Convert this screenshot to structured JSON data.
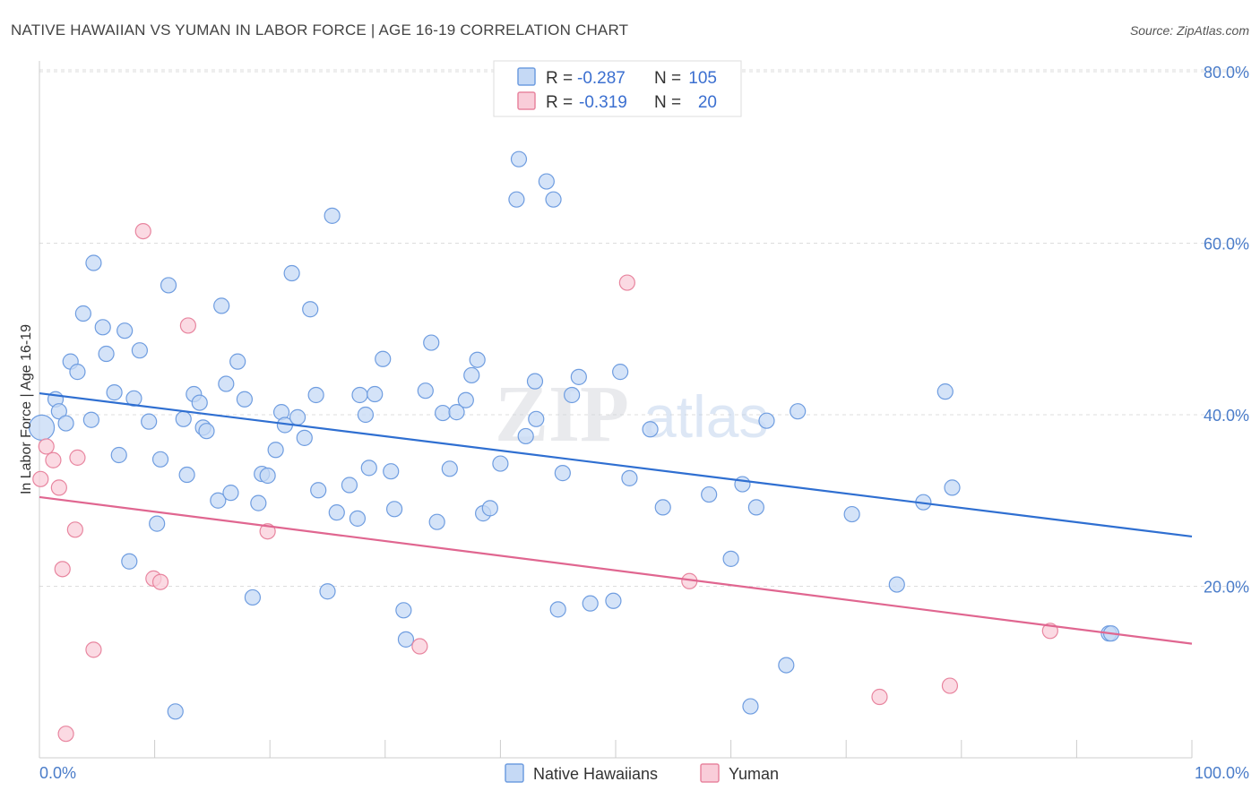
{
  "chart_data": {
    "type": "scatter",
    "title": "NATIVE HAWAIIAN VS YUMAN IN LABOR FORCE | AGE 16-19 CORRELATION CHART",
    "source": "Source: ZipAtlas.com",
    "xlabel": "",
    "ylabel": "In Labor Force | Age 16-19",
    "xlim": [
      0,
      100
    ],
    "ylim": [
      0,
      80
    ],
    "x_tick_labels": [
      "0.0%",
      "100.0%"
    ],
    "y_ticks": [
      20,
      40,
      60,
      80
    ],
    "y_tick_labels": [
      "20.0%",
      "40.0%",
      "60.0%",
      "80.0%"
    ],
    "grid": true,
    "watermark": {
      "zip": "ZIP",
      "atlas": "atlas"
    },
    "stats_legend": [
      {
        "r_label": "R =",
        "r_value": "-0.287",
        "n_label": "N =",
        "n_value": "105"
      },
      {
        "r_label": "R =",
        "r_value": "-0.319",
        "n_label": "N =",
        "n_value": "20"
      }
    ],
    "series": [
      {
        "name": "Native Hawaiians",
        "color": "#6f9de0",
        "fill": "#c5d9f5",
        "trend": {
          "x": [
            0,
            100
          ],
          "y": [
            42.5,
            25.8
          ]
        },
        "points": [
          [
            0.2,
            38.5
          ],
          [
            1.4,
            41.8
          ],
          [
            1.7,
            40.4
          ],
          [
            2.3,
            39.0
          ],
          [
            2.7,
            46.2
          ],
          [
            3.3,
            45.0
          ],
          [
            3.8,
            51.8
          ],
          [
            4.5,
            39.4
          ],
          [
            4.7,
            57.7
          ],
          [
            5.5,
            50.2
          ],
          [
            5.8,
            47.1
          ],
          [
            6.5,
            42.6
          ],
          [
            6.9,
            35.3
          ],
          [
            7.4,
            49.8
          ],
          [
            7.8,
            22.9
          ],
          [
            8.2,
            41.9
          ],
          [
            8.7,
            47.5
          ],
          [
            9.5,
            39.2
          ],
          [
            10.2,
            27.3
          ],
          [
            10.5,
            34.8
          ],
          [
            11.2,
            55.1
          ],
          [
            11.8,
            5.4
          ],
          [
            12.5,
            39.5
          ],
          [
            12.8,
            33.0
          ],
          [
            13.4,
            42.4
          ],
          [
            13.9,
            41.4
          ],
          [
            14.2,
            38.5
          ],
          [
            14.5,
            38.1
          ],
          [
            15.5,
            30.0
          ],
          [
            15.8,
            52.7
          ],
          [
            16.2,
            43.6
          ],
          [
            16.6,
            30.9
          ],
          [
            17.2,
            46.2
          ],
          [
            17.8,
            41.8
          ],
          [
            18.5,
            18.7
          ],
          [
            19.0,
            29.7
          ],
          [
            19.3,
            33.1
          ],
          [
            19.8,
            32.9
          ],
          [
            20.5,
            35.9
          ],
          [
            21.0,
            40.3
          ],
          [
            21.3,
            38.8
          ],
          [
            21.9,
            56.5
          ],
          [
            22.4,
            39.7
          ],
          [
            23.0,
            37.3
          ],
          [
            23.5,
            52.3
          ],
          [
            24.0,
            42.3
          ],
          [
            24.2,
            31.2
          ],
          [
            25.0,
            19.4
          ],
          [
            25.4,
            63.2
          ],
          [
            25.8,
            28.6
          ],
          [
            26.9,
            31.8
          ],
          [
            27.6,
            27.9
          ],
          [
            27.8,
            42.3
          ],
          [
            28.3,
            40.0
          ],
          [
            28.6,
            33.8
          ],
          [
            29.1,
            42.4
          ],
          [
            29.8,
            46.5
          ],
          [
            30.5,
            33.4
          ],
          [
            30.8,
            29.0
          ],
          [
            31.6,
            17.2
          ],
          [
            31.8,
            13.8
          ],
          [
            33.5,
            42.8
          ],
          [
            34.0,
            48.4
          ],
          [
            34.5,
            27.5
          ],
          [
            35.0,
            40.2
          ],
          [
            35.6,
            33.7
          ],
          [
            36.2,
            40.3
          ],
          [
            37.0,
            41.7
          ],
          [
            37.5,
            44.6
          ],
          [
            38.0,
            46.4
          ],
          [
            38.5,
            28.5
          ],
          [
            39.1,
            29.1
          ],
          [
            40.0,
            34.3
          ],
          [
            41.4,
            65.1
          ],
          [
            41.6,
            69.8
          ],
          [
            42.2,
            37.5
          ],
          [
            43.0,
            43.9
          ],
          [
            43.1,
            39.5
          ],
          [
            44.0,
            67.2
          ],
          [
            44.6,
            65.1
          ],
          [
            45.0,
            17.3
          ],
          [
            45.4,
            33.2
          ],
          [
            46.2,
            42.3
          ],
          [
            46.8,
            44.4
          ],
          [
            47.8,
            18.0
          ],
          [
            49.8,
            18.3
          ],
          [
            50.4,
            45.0
          ],
          [
            51.2,
            32.6
          ],
          [
            53.0,
            38.3
          ],
          [
            54.1,
            29.2
          ],
          [
            58.1,
            30.7
          ],
          [
            60.0,
            23.2
          ],
          [
            61.0,
            31.9
          ],
          [
            61.7,
            6.0
          ],
          [
            62.2,
            29.2
          ],
          [
            63.1,
            39.3
          ],
          [
            64.8,
            10.8
          ],
          [
            65.8,
            40.4
          ],
          [
            70.5,
            28.4
          ],
          [
            74.4,
            20.2
          ],
          [
            76.7,
            29.8
          ],
          [
            78.6,
            42.7
          ],
          [
            79.2,
            31.5
          ],
          [
            92.8,
            14.5
          ],
          [
            93.0,
            14.5
          ]
        ]
      },
      {
        "name": "Yuman",
        "color": "#e8859f",
        "fill": "#f9cdd9",
        "trend": {
          "x": [
            0,
            100
          ],
          "y": [
            30.4,
            13.3
          ]
        },
        "points": [
          [
            0.1,
            32.5
          ],
          [
            0.6,
            36.3
          ],
          [
            1.2,
            34.7
          ],
          [
            1.7,
            31.5
          ],
          [
            2.0,
            22.0
          ],
          [
            2.3,
            2.8
          ],
          [
            3.1,
            26.6
          ],
          [
            3.3,
            35.0
          ],
          [
            4.7,
            12.6
          ],
          [
            9.0,
            61.4
          ],
          [
            9.9,
            20.9
          ],
          [
            10.5,
            20.5
          ],
          [
            12.9,
            50.4
          ],
          [
            19.8,
            26.4
          ],
          [
            33.0,
            13.0
          ],
          [
            51.0,
            55.4
          ],
          [
            56.4,
            20.6
          ],
          [
            72.9,
            7.1
          ],
          [
            79.0,
            8.4
          ],
          [
            87.7,
            14.8
          ]
        ]
      }
    ]
  }
}
